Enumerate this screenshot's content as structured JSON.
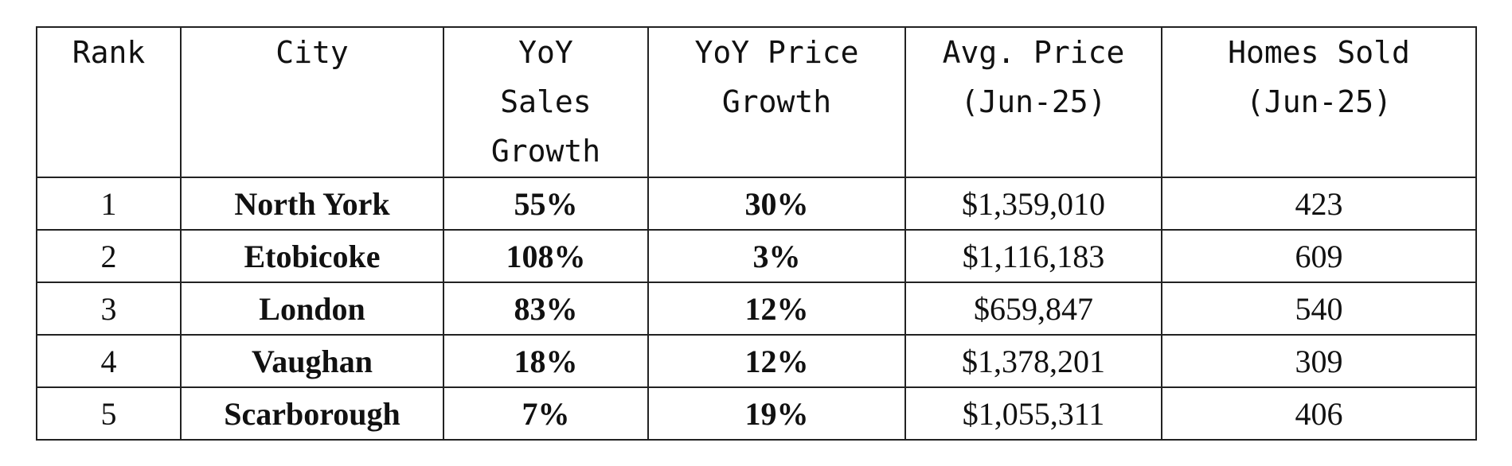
{
  "table": {
    "header": [
      [
        "Rank"
      ],
      [
        "City"
      ],
      [
        "YoY",
        "Sales",
        "Growth"
      ],
      [
        "YoY Price",
        "Growth"
      ],
      [
        "Avg. Price",
        "(Jun-25)"
      ],
      [
        "Homes Sold",
        "(Jun-25)"
      ]
    ],
    "rows": [
      [
        "1",
        "North York",
        "55%",
        "30%",
        "$1,359,010",
        "423"
      ],
      [
        "2",
        "Etobicoke",
        "108%",
        "3%",
        "$1,116,183",
        "609"
      ],
      [
        "3",
        "London",
        "83%",
        "12%",
        "$659,847",
        "540"
      ],
      [
        "4",
        "Vaughan",
        "18%",
        "12%",
        "$1,378,201",
        "309"
      ],
      [
        "5",
        "Scarborough",
        "7%",
        "19%",
        "$1,055,311",
        "406"
      ]
    ]
  }
}
